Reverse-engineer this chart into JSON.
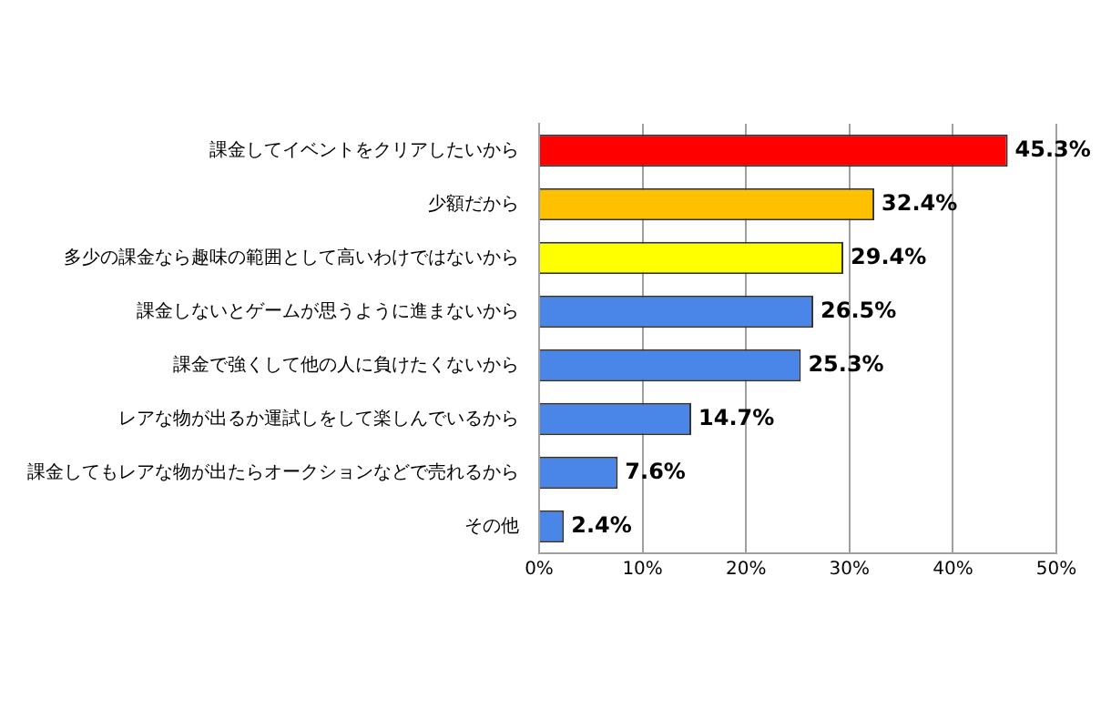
{
  "chart_data": {
    "type": "bar",
    "orientation": "horizontal",
    "categories": [
      "課金してイベントをクリアしたいから",
      "少額だから",
      "多少の課金なら趣味の範囲として高いわけではないから",
      "課金しないとゲームが思うように進まないから",
      "課金で強くして他の人に負けたくないから",
      "レアな物が出るか運試しをして楽しんでいるから",
      "課金してもレアな物が出たらオークションなどで売れるから",
      "その他"
    ],
    "values": [
      45.3,
      32.4,
      29.4,
      26.5,
      25.3,
      14.7,
      7.6,
      2.4
    ],
    "colors": [
      "#ff0000",
      "#ffc000",
      "#ffff00",
      "#4a86e8",
      "#4a86e8",
      "#4a86e8",
      "#4a86e8",
      "#4a86e8"
    ],
    "value_labels": [
      "45.3%",
      "32.4%",
      "29.4%",
      "26.5%",
      "25.3%",
      "14.7%",
      "7.6%",
      "2.4%"
    ],
    "xlim": [
      0,
      50
    ],
    "xticks": [
      {
        "value": 0,
        "label": "0%"
      },
      {
        "value": 10,
        "label": "10%"
      },
      {
        "value": 20,
        "label": "20%"
      },
      {
        "value": 30,
        "label": "30%"
      },
      {
        "value": 40,
        "label": "40%"
      },
      {
        "value": 50,
        "label": "50%"
      }
    ],
    "grid": "x",
    "legend": false
  }
}
